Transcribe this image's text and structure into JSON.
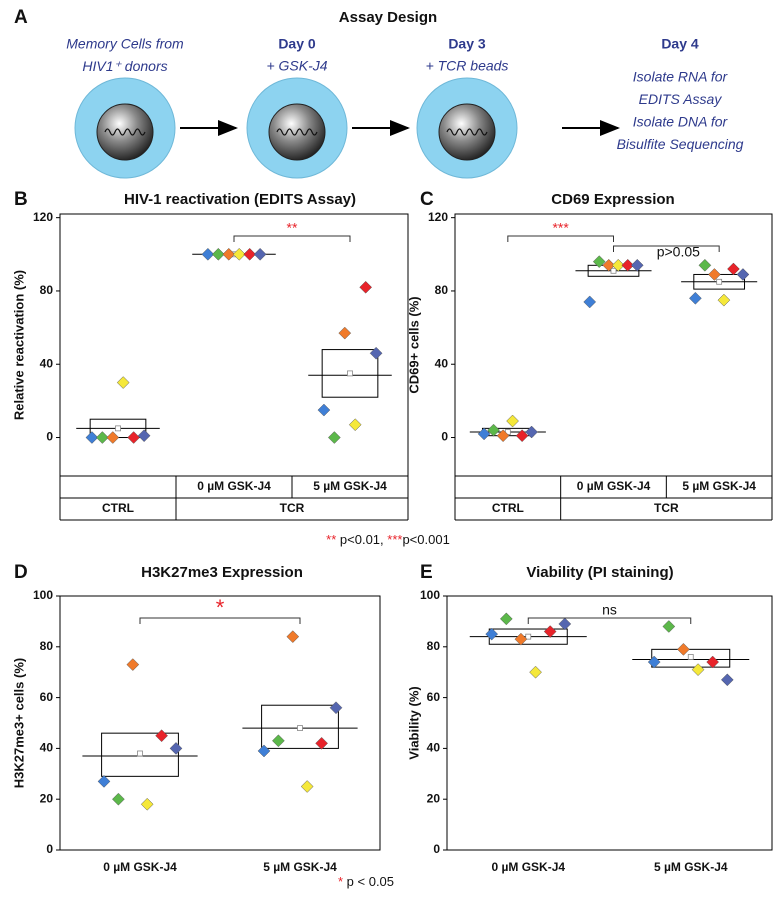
{
  "panel_a": {
    "letter": "A",
    "title": "Assay Design",
    "steps": [
      {
        "lines": [
          "Memory Cells from",
          "HIV1⁺ donors"
        ]
      },
      {
        "heading": "Day 0",
        "lines": [
          "+ GSK-J4"
        ]
      },
      {
        "heading": "Day 3",
        "lines": [
          "+ TCR beads"
        ]
      },
      {
        "heading": "Day 4",
        "lines": [
          "Isolate RNA for",
          "EDITS Assay",
          "Isolate DNA for",
          "Bisulfite Sequencing"
        ]
      }
    ]
  },
  "chart_data": [
    {
      "type": "dotbox",
      "letter": "B",
      "title": "HIV-1 reactivation (EDITS Assay)",
      "y_label": "Relative reactivation (%)",
      "categories": [
        null,
        "0 µM GSK-J4",
        "5 µM GSK-J4"
      ],
      "groups": [
        {
          "label": "CTRL",
          "span": 1
        },
        {
          "label": "TCR",
          "span": 2
        }
      ],
      "ylim": [
        -21,
        122
      ],
      "yticks": [
        0,
        40,
        80,
        120
      ],
      "series": [
        {
          "color": "#3f7fd6",
          "values": [
            0,
            100,
            15
          ]
        },
        {
          "color": "#5cb84a",
          "values": [
            0,
            100,
            0
          ]
        },
        {
          "color": "#f07a2a",
          "values": [
            0,
            100,
            57
          ]
        },
        {
          "color": "#f5e83a",
          "values": [
            30,
            100,
            7
          ]
        },
        {
          "color": "#e8232a",
          "values": [
            0,
            100,
            82
          ]
        },
        {
          "color": "#5566b0",
          "values": [
            1,
            100,
            46
          ]
        }
      ],
      "box_low": [
        0,
        100,
        22
      ],
      "box_high": [
        10,
        100,
        48
      ],
      "box_mid": [
        5,
        100,
        34
      ],
      "means": [
        5,
        100,
        35
      ],
      "brackets": [
        {
          "from": 1,
          "to": 2,
          "label": "**",
          "color": "#e8232a"
        }
      ]
    },
    {
      "type": "dotbox",
      "letter": "C",
      "title": "CD69 Expression",
      "y_label": "CD69+ cells (%)",
      "categories": [
        null,
        "0 µM GSK-J4",
        "5 µM GSK-J4"
      ],
      "groups": [
        {
          "label": "CTRL",
          "span": 1
        },
        {
          "label": "TCR",
          "span": 2
        }
      ],
      "ylim": [
        -21,
        122
      ],
      "yticks": [
        0,
        40,
        80,
        120
      ],
      "series": [
        {
          "color": "#3f7fd6",
          "values": [
            2,
            74,
            76
          ]
        },
        {
          "color": "#5cb84a",
          "values": [
            4,
            96,
            94
          ]
        },
        {
          "color": "#f07a2a",
          "values": [
            1,
            94,
            89
          ]
        },
        {
          "color": "#f5e83a",
          "values": [
            9,
            94,
            75
          ]
        },
        {
          "color": "#e8232a",
          "values": [
            1,
            94,
            92
          ]
        },
        {
          "color": "#5566b0",
          "values": [
            3,
            94,
            89
          ]
        }
      ],
      "box_low": [
        1,
        88,
        81
      ],
      "box_high": [
        5,
        94,
        89
      ],
      "box_mid": [
        3,
        91,
        85
      ],
      "means": [
        3,
        91,
        85
      ],
      "brackets": [
        {
          "from": 0,
          "to": 1,
          "label": "***",
          "color": "#e8232a"
        },
        {
          "from": 1,
          "to": 2,
          "label": "p>0.05",
          "color": "#111111"
        }
      ]
    },
    {
      "type": "dotbox",
      "letter": "D",
      "title": "H3K27me3 Expression",
      "y_label": "H3K27me3+ cells (%)",
      "categories": [
        "0 µM GSK-J4",
        "5 µM GSK-J4"
      ],
      "ylim": [
        0,
        100
      ],
      "yticks": [
        0,
        20,
        40,
        60,
        80,
        100
      ],
      "series": [
        {
          "color": "#3f7fd6",
          "values": [
            27,
            39
          ]
        },
        {
          "color": "#5cb84a",
          "values": [
            20,
            43
          ]
        },
        {
          "color": "#f07a2a",
          "values": [
            73,
            84
          ]
        },
        {
          "color": "#f5e83a",
          "values": [
            18,
            25
          ]
        },
        {
          "color": "#e8232a",
          "values": [
            45,
            42
          ]
        },
        {
          "color": "#5566b0",
          "values": [
            40,
            56
          ]
        }
      ],
      "box_low": [
        29,
        40
      ],
      "box_high": [
        46,
        57
      ],
      "box_mid": [
        37,
        48
      ],
      "means": [
        38,
        48
      ],
      "brackets": [
        {
          "from": 0,
          "to": 1,
          "label": "*",
          "color": "#e8232a"
        }
      ]
    },
    {
      "type": "dotbox",
      "letter": "E",
      "title": "Viability (PI staining)",
      "y_label": "Viability (%)",
      "categories": [
        "0 µM GSK-J4",
        "5 µM GSK-J4"
      ],
      "ylim": [
        0,
        100
      ],
      "yticks": [
        0,
        20,
        40,
        60,
        80,
        100
      ],
      "series": [
        {
          "color": "#3f7fd6",
          "values": [
            85,
            74
          ]
        },
        {
          "color": "#5cb84a",
          "values": [
            91,
            88
          ]
        },
        {
          "color": "#f07a2a",
          "values": [
            83,
            79
          ]
        },
        {
          "color": "#f5e83a",
          "values": [
            70,
            71
          ]
        },
        {
          "color": "#e8232a",
          "values": [
            86,
            74
          ]
        },
        {
          "color": "#5566b0",
          "values": [
            89,
            67
          ]
        }
      ],
      "box_low": [
        81,
        72
      ],
      "box_high": [
        87,
        79
      ],
      "box_mid": [
        84,
        75
      ],
      "means": [
        84,
        76
      ],
      "brackets": [
        {
          "from": 0,
          "to": 1,
          "label": "ns",
          "color": "#111111"
        }
      ]
    }
  ],
  "notes": [
    {
      "parts": [
        {
          "text": "**",
          "color": "#e8232a"
        },
        {
          "text": " p<0.01, "
        },
        {
          "text": "***",
          "color": "#e8232a"
        },
        {
          "text": "p<0.001"
        }
      ]
    },
    {
      "parts": [
        {
          "text": "*",
          "color": "#e8232a"
        },
        {
          "text": " p < 0.05"
        }
      ]
    }
  ]
}
